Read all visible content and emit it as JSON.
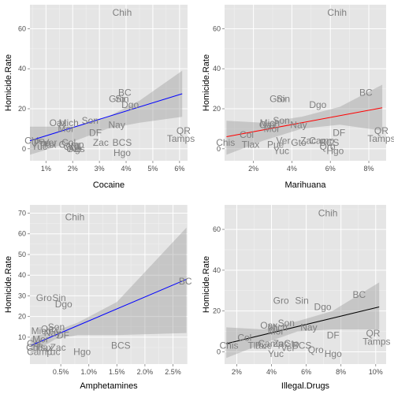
{
  "chart_data": [
    {
      "type": "scatter",
      "xlabel": "Cocaine",
      "ylabel": "Homicide.Rate",
      "xlim": [
        0.004,
        0.063
      ],
      "ylim": [
        -6,
        72
      ],
      "xticks": [
        0.01,
        0.02,
        0.03,
        0.04,
        0.05,
        0.06
      ],
      "xtick_labels": [
        "1%",
        "2%",
        "3%",
        "4%",
        "5%",
        "6%"
      ],
      "yticks": [
        0,
        20,
        40,
        60
      ],
      "ytick_labels": [
        "0",
        "20",
        "40",
        "60"
      ],
      "grid": true,
      "points": [
        {
          "label": "Chih",
          "x": 0.0385,
          "y": 68
        },
        {
          "label": "BC",
          "x": 0.0395,
          "y": 28
        },
        {
          "label": "Gro",
          "x": 0.0365,
          "y": 25
        },
        {
          "label": "Sin",
          "x": 0.0385,
          "y": 25
        },
        {
          "label": "Dgo",
          "x": 0.0415,
          "y": 22
        },
        {
          "label": "Oax",
          "x": 0.0145,
          "y": 13
        },
        {
          "label": "Mich",
          "x": 0.0185,
          "y": 13
        },
        {
          "label": "Son",
          "x": 0.0265,
          "y": 14
        },
        {
          "label": "Nay",
          "x": 0.0365,
          "y": 12
        },
        {
          "label": "Mor",
          "x": 0.0175,
          "y": 10
        },
        {
          "label": "DF",
          "x": 0.0285,
          "y": 8
        },
        {
          "label": "Zac",
          "x": 0.0305,
          "y": 3
        },
        {
          "label": "BCS",
          "x": 0.0385,
          "y": 3
        },
        {
          "label": "Hgo",
          "x": 0.0385,
          "y": -2
        },
        {
          "label": "QR",
          "x": 0.0615,
          "y": 9
        },
        {
          "label": "Tamps",
          "x": 0.0605,
          "y": 5
        },
        {
          "label": "Chis",
          "x": 0.0055,
          "y": 4
        },
        {
          "label": "Pue",
          "x": 0.0085,
          "y": 3
        },
        {
          "label": "Ver",
          "x": 0.0115,
          "y": 3
        },
        {
          "label": "Tlax",
          "x": 0.0105,
          "y": 2
        },
        {
          "label": "Col",
          "x": 0.0185,
          "y": 3
        },
        {
          "label": "Yuc",
          "x": 0.0075,
          "y": 1
        },
        {
          "label": "Camp",
          "x": 0.0195,
          "y": 2
        },
        {
          "label": "Qro",
          "x": 0.0195,
          "y": 1
        },
        {
          "label": "Gto",
          "x": 0.0205,
          "y": 0
        },
        {
          "label": "NL",
          "x": 0.0215,
          "y": 1
        },
        {
          "label": "Ags",
          "x": 0.0215,
          "y": 0
        }
      ],
      "fit": {
        "color": "#0000ff",
        "x": [
          0.004,
          0.061
        ],
        "y": [
          4,
          27.5
        ]
      },
      "band": {
        "x": [
          0.004,
          0.021,
          0.033,
          0.045,
          0.061
        ],
        "lo": [
          -3,
          4,
          10,
          13,
          16
        ],
        "hi": [
          11,
          11,
          16,
          24,
          39
        ]
      }
    },
    {
      "type": "scatter",
      "xlabel": "Marihuana",
      "ylabel": "Homicide.Rate",
      "xlim": [
        0.005,
        0.089
      ],
      "ylim": [
        -6,
        72
      ],
      "xticks": [
        0.02,
        0.04,
        0.06,
        0.08
      ],
      "xtick_labels": [
        "2%",
        "4%",
        "6%",
        "8%"
      ],
      "yticks": [
        0,
        20,
        40,
        60
      ],
      "ytick_labels": [
        "0",
        "20",
        "40",
        "60"
      ],
      "grid": true,
      "points": [
        {
          "label": "Chih",
          "x": 0.0635,
          "y": 68
        },
        {
          "label": "BC",
          "x": 0.0785,
          "y": 28
        },
        {
          "label": "Gro",
          "x": 0.0325,
          "y": 25
        },
        {
          "label": "Sin",
          "x": 0.0355,
          "y": 25
        },
        {
          "label": "Dgo",
          "x": 0.0535,
          "y": 22
        },
        {
          "label": "Son",
          "x": 0.0345,
          "y": 14
        },
        {
          "label": "Mich",
          "x": 0.0285,
          "y": 13
        },
        {
          "label": "Oax",
          "x": 0.0275,
          "y": 12
        },
        {
          "label": "Nay",
          "x": 0.0435,
          "y": 12
        },
        {
          "label": "Mor",
          "x": 0.0295,
          "y": 10
        },
        {
          "label": "Col",
          "x": 0.0165,
          "y": 7
        },
        {
          "label": "DF",
          "x": 0.0645,
          "y": 8
        },
        {
          "label": "BCS",
          "x": 0.0595,
          "y": 3
        },
        {
          "label": "Zac",
          "x": 0.0485,
          "y": 4
        },
        {
          "label": "Camp",
          "x": 0.0555,
          "y": 4
        },
        {
          "label": "Ver",
          "x": 0.0355,
          "y": 4
        },
        {
          "label": "Pue",
          "x": 0.0315,
          "y": 2
        },
        {
          "label": "Tlax",
          "x": 0.0185,
          "y": 2
        },
        {
          "label": "Chis",
          "x": 0.0055,
          "y": 3
        },
        {
          "label": "Yuc",
          "x": 0.0345,
          "y": -1
        },
        {
          "label": "Gto",
          "x": 0.0435,
          "y": 3
        },
        {
          "label": "Qro",
          "x": 0.0585,
          "y": 1
        },
        {
          "label": "Hgo",
          "x": 0.0625,
          "y": -1
        },
        {
          "label": "QR",
          "x": 0.0865,
          "y": 9
        },
        {
          "label": "Tamps",
          "x": 0.0865,
          "y": 5
        }
      ],
      "fit": {
        "color": "#ff0000",
        "x": [
          0.006,
          0.087
        ],
        "y": [
          6,
          20.5
        ]
      },
      "band": {
        "x": [
          0.006,
          0.025,
          0.045,
          0.065,
          0.087
        ],
        "lo": [
          -3,
          4,
          10,
          12,
          9
        ],
        "hi": [
          14,
          13,
          16,
          21,
          32
        ]
      }
    },
    {
      "type": "scatter",
      "xlabel": "Amphetamines",
      "ylabel": "Homicide.Rate",
      "xlim": [
        -0.0005,
        0.0276
      ],
      "ylim": [
        -3,
        74
      ],
      "xticks": [
        0.005,
        0.01,
        0.015,
        0.02,
        0.025
      ],
      "xtick_labels": [
        "0.5%",
        "1.0%",
        "1.5%",
        "2.0%",
        "2.5%"
      ],
      "yticks": [
        10,
        20,
        30,
        40,
        50,
        60,
        70
      ],
      "ytick_labels": [
        "10",
        "20",
        "30",
        "40",
        "50",
        "60",
        "70"
      ],
      "grid": true,
      "points": [
        {
          "label": "Chih",
          "x": 0.0075,
          "y": 68
        },
        {
          "label": "BC",
          "x": 0.0272,
          "y": 37
        },
        {
          "label": "Gro",
          "x": 0.002,
          "y": 29
        },
        {
          "label": "Sin",
          "x": 0.0047,
          "y": 29
        },
        {
          "label": "Dgo",
          "x": 0.0055,
          "y": 26
        },
        {
          "label": "Son",
          "x": 0.0042,
          "y": 15
        },
        {
          "label": "Oax",
          "x": 0.003,
          "y": 14
        },
        {
          "label": "Mich",
          "x": 0.0015,
          "y": 13
        },
        {
          "label": "Nay",
          "x": 0.0035,
          "y": 12
        },
        {
          "label": "DF",
          "x": 0.0054,
          "y": 11
        },
        {
          "label": "Mor",
          "x": 0.0014,
          "y": 9
        },
        {
          "label": "BCS",
          "x": 0.0157,
          "y": 6
        },
        {
          "label": "Hgo",
          "x": 0.0088,
          "y": 3
        },
        {
          "label": "Col",
          "x": 0.0002,
          "y": 7
        },
        {
          "label": "Chis",
          "x": 0.0005,
          "y": 5
        },
        {
          "label": "Tlax",
          "x": 0.002,
          "y": 5
        },
        {
          "label": "Yuc",
          "x": 0.0035,
          "y": 3
        },
        {
          "label": "Zac",
          "x": 0.0045,
          "y": 5
        },
        {
          "label": "Camp",
          "x": 0.0012,
          "y": 3
        }
      ],
      "fit": {
        "color": "#0000ff",
        "x": [
          -0.0003,
          0.0274
        ],
        "y": [
          6,
          38
        ]
      },
      "band": {
        "x": [
          -0.0003,
          0.004,
          0.008,
          0.015,
          0.0274
        ],
        "lo": [
          2,
          9,
          11,
          11,
          12
        ],
        "hi": [
          10,
          13,
          17,
          27,
          63
        ]
      }
    },
    {
      "type": "scatter",
      "xlabel": "Illegal.Drugs",
      "ylabel": "Homicide.Rate",
      "xlim": [
        0.013,
        0.106
      ],
      "ylim": [
        -6,
        72
      ],
      "xticks": [
        0.02,
        0.04,
        0.06,
        0.08,
        0.1
      ],
      "xtick_labels": [
        "2%",
        "4%",
        "6%",
        "8%",
        "10%"
      ],
      "yticks": [
        0,
        20,
        40,
        60
      ],
      "ytick_labels": [
        "0",
        "20",
        "40",
        "60"
      ],
      "grid": true,
      "points": [
        {
          "label": "Chih",
          "x": 0.0725,
          "y": 68
        },
        {
          "label": "BC",
          "x": 0.0905,
          "y": 28
        },
        {
          "label": "Gro",
          "x": 0.0455,
          "y": 25
        },
        {
          "label": "Sin",
          "x": 0.0575,
          "y": 25
        },
        {
          "label": "Dgo",
          "x": 0.0695,
          "y": 22
        },
        {
          "label": "Son",
          "x": 0.0485,
          "y": 14
        },
        {
          "label": "Oax",
          "x": 0.0385,
          "y": 13
        },
        {
          "label": "Mich",
          "x": 0.0435,
          "y": 12
        },
        {
          "label": "Nay",
          "x": 0.0615,
          "y": 12
        },
        {
          "label": "Mor",
          "x": 0.0425,
          "y": 10
        },
        {
          "label": "Col",
          "x": 0.0245,
          "y": 7
        },
        {
          "label": "DF",
          "x": 0.0755,
          "y": 8
        },
        {
          "label": "BCS",
          "x": 0.0575,
          "y": 3
        },
        {
          "label": "Zac",
          "x": 0.0455,
          "y": 4
        },
        {
          "label": "Camp",
          "x": 0.0395,
          "y": 4
        },
        {
          "label": "Gto",
          "x": 0.0515,
          "y": 4
        },
        {
          "label": "Ver",
          "x": 0.0495,
          "y": 2
        },
        {
          "label": "Tlax",
          "x": 0.0315,
          "y": 3
        },
        {
          "label": "Pue",
          "x": 0.0355,
          "y": 3
        },
        {
          "label": "Chis",
          "x": 0.0155,
          "y": 3
        },
        {
          "label": "Yuc",
          "x": 0.0425,
          "y": -1
        },
        {
          "label": "Qro",
          "x": 0.0655,
          "y": 1
        },
        {
          "label": "Hgo",
          "x": 0.0755,
          "y": -1
        },
        {
          "label": "QR",
          "x": 0.0985,
          "y": 9
        },
        {
          "label": "Tamps",
          "x": 0.1005,
          "y": 5
        }
      ],
      "fit": {
        "color": "#000000",
        "x": [
          0.014,
          0.102
        ],
        "y": [
          4,
          22
        ]
      },
      "band": {
        "x": [
          0.014,
          0.035,
          0.055,
          0.075,
          0.102
        ],
        "lo": [
          -3,
          4,
          10,
          11,
          11
        ],
        "hi": [
          12,
          11,
          15,
          20,
          34
        ]
      }
    }
  ]
}
